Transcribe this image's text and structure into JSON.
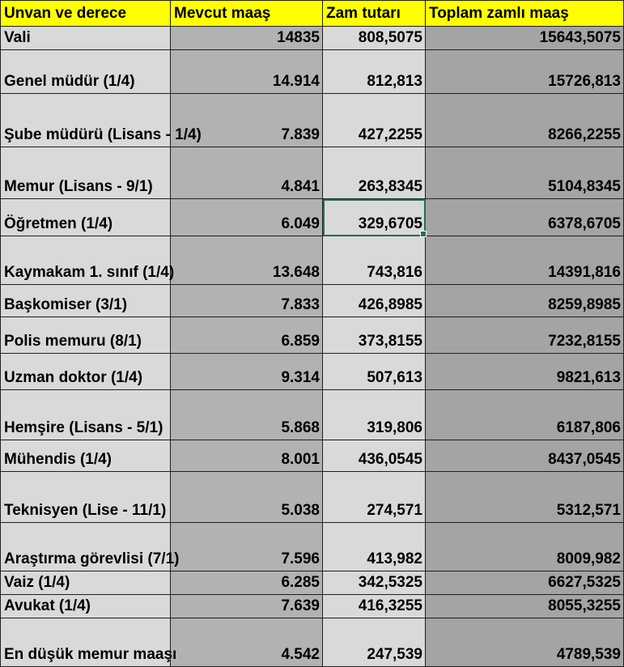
{
  "columns": [
    "Unvan ve derece",
    "Mevcut maaş",
    "Zam tutarı",
    "Toplam zamlı maaş"
  ],
  "selected_row": 4,
  "selected_col": 2,
  "colors": {
    "header_bg": "#ffff00",
    "title_bg": "#d9d9d9",
    "col2_bg": "#b2b2b2",
    "col3_bg": "#d9d9d9",
    "col4_bg": "#a4a4a4",
    "selection": "#217346"
  },
  "rows": [
    {
      "title": "Vali",
      "current": "14835",
      "raise": "808,5075",
      "total": "15643,5075"
    },
    {
      "title": "Genel müdür (1/4)",
      "current": "14.914",
      "raise": "812,813",
      "total": "15726,813"
    },
    {
      "title": "Şube müdürü (Lisans - 1/4)",
      "current": "7.839",
      "raise": "427,2255",
      "total": "8266,2255"
    },
    {
      "title": "Memur (Lisans - 9/1)",
      "current": "4.841",
      "raise": "263,8345",
      "total": "5104,8345"
    },
    {
      "title": "Öğretmen (1/4)",
      "current": "6.049",
      "raise": "329,6705",
      "total": "6378,6705"
    },
    {
      "title": "Kaymakam 1. sınıf (1/4)",
      "current": "13.648",
      "raise": "743,816",
      "total": "14391,816"
    },
    {
      "title": "Başkomiser (3/1)",
      "current": "7.833",
      "raise": "426,8985",
      "total": "8259,8985"
    },
    {
      "title": "Polis memuru (8/1)",
      "current": "6.859",
      "raise": "373,8155",
      "total": "7232,8155"
    },
    {
      "title": "Uzman doktor (1/4)",
      "current": "9.314",
      "raise": "507,613",
      "total": "9821,613"
    },
    {
      "title": "Hemşire (Lisans - 5/1)",
      "current": "5.868",
      "raise": "319,806",
      "total": "6187,806"
    },
    {
      "title": "Mühendis (1/4)",
      "current": "8.001",
      "raise": "436,0545",
      "total": "8437,0545"
    },
    {
      "title": "Teknisyen (Lise - 11/1)",
      "current": "5.038",
      "raise": "274,571",
      "total": "5312,571"
    },
    {
      "title": "Araştırma görevlisi (7/1)",
      "current": "7.596",
      "raise": "413,982",
      "total": "8009,982"
    },
    {
      "title": "Vaiz (1/4)",
      "current": "6.285",
      "raise": "342,5325",
      "total": "6627,5325"
    },
    {
      "title": "Avukat (1/4)",
      "current": "7.639",
      "raise": "416,3255",
      "total": "8055,3255"
    },
    {
      "title": "En düşük memur maaşı",
      "current": "4.542",
      "raise": "247,539",
      "total": "4789,539"
    }
  ]
}
